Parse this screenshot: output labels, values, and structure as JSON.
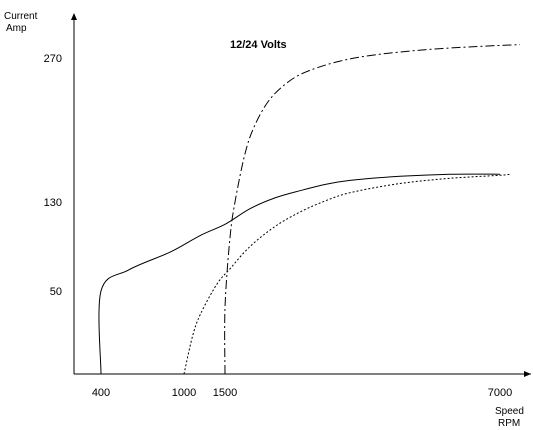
{
  "chart_data": {
    "type": "line",
    "title": "12/24 Volts",
    "ylabel_lines": [
      "Current",
      "Amp"
    ],
    "xlabel_lines": [
      "Speed",
      "RPM"
    ],
    "xlim": [
      0,
      7500
    ],
    "ylim": [
      0,
      300
    ],
    "x_ticks": [
      400,
      1000,
      1500,
      7000
    ],
    "y_ticks": [
      50,
      130,
      270
    ],
    "grid": false,
    "legend": "none",
    "colors": {
      "line": "#000000"
    },
    "series": [
      {
        "line_style": "solid",
        "x": [
          400,
          400,
          600,
          900,
          1200,
          1500,
          2000,
          2500,
          3000,
          3500,
          4000,
          5000,
          6000,
          7000
        ],
        "y": [
          0,
          50,
          69,
          85,
          100,
          110,
          124,
          134,
          141,
          147,
          151,
          155,
          157,
          157
        ]
      },
      {
        "line_style": "dotted",
        "x": [
          1000,
          1100,
          1200,
          1400,
          1600,
          2000,
          2500,
          3000,
          3500,
          4000,
          5000,
          6000,
          7000,
          7200
        ],
        "y": [
          0,
          22,
          36,
          56,
          70,
          90,
          108,
          121,
          131,
          139,
          148,
          153,
          156,
          157
        ]
      },
      {
        "line_style": "dash-dot",
        "x": [
          1500,
          1500,
          1600,
          1700,
          1900,
          2100,
          2400,
          2800,
          3200,
          3800,
          4500,
          5500,
          6500,
          7400
        ],
        "y": [
          0,
          40,
          98,
          130,
          177,
          205,
          230,
          248,
          258,
          267,
          273,
          278,
          281,
          283
        ]
      }
    ]
  }
}
